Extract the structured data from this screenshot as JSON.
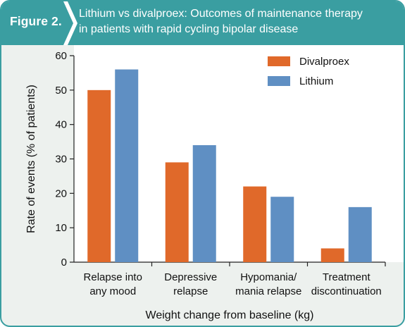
{
  "header": {
    "figure_label": "Figure 2.",
    "title_line1": "Lithium vs divalproex: Outcomes of maintenance therapy",
    "title_line2": "in patients with rapid cycling bipolar disease"
  },
  "colors": {
    "header_bg": "#3a9ea1",
    "panel_bg": "#edf1ee",
    "divalproex": "#e0692a",
    "lithium": "#5f8fc3"
  },
  "chart_data": {
    "type": "bar",
    "categories": [
      [
        "Relapse into",
        "any mood"
      ],
      [
        "Depressive",
        "relapse"
      ],
      [
        "Hypomania/",
        "mania relapse"
      ],
      [
        "Treatment",
        "discontinuation"
      ]
    ],
    "series": [
      {
        "name": "Divalproex",
        "values": [
          50,
          29,
          22,
          4
        ]
      },
      {
        "name": "Lithium",
        "values": [
          56,
          34,
          19,
          16
        ]
      }
    ],
    "xlabel": "Weight change from baseline (kg)",
    "ylabel": "Rate of events (% of patients)",
    "ylim": [
      0,
      60
    ],
    "yticks": [
      0,
      10,
      20,
      30,
      40,
      50,
      60
    ],
    "grid": false,
    "legend_position": "top-right"
  }
}
